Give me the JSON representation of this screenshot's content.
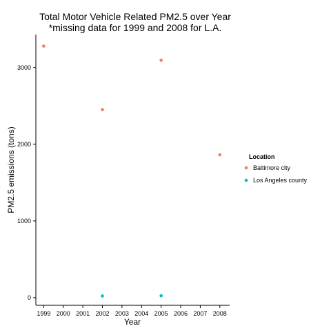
{
  "chart_data": {
    "type": "scatter",
    "title": "Total Motor Vehicle Related PM2.5 over Year",
    "subtitle": "*missing data for 1999 and 2008 for L.A.",
    "xlabel": "Year",
    "ylabel": "PM2.5 emissions (tons)",
    "x_ticks": [
      1999,
      2000,
      2001,
      2002,
      2003,
      2004,
      2005,
      2006,
      2007,
      2008
    ],
    "y_ticks": [
      0,
      1000,
      2000,
      3000
    ],
    "xlim": [
      1998.6,
      2008.5
    ],
    "ylim": [
      -100,
      3430
    ],
    "grid": false,
    "legend": {
      "title": "Location",
      "position": "right"
    },
    "series": [
      {
        "name": "Baltimore city",
        "color": "#F8766D",
        "points": [
          {
            "x": 1999,
            "y": 3280
          },
          {
            "x": 2002,
            "y": 2450
          },
          {
            "x": 2005,
            "y": 3095
          },
          {
            "x": 2008,
            "y": 1862
          }
        ]
      },
      {
        "name": "Los Angeles county",
        "color": "#00BFC4",
        "points": [
          {
            "x": 2002,
            "y": 22
          },
          {
            "x": 2005,
            "y": 25
          }
        ]
      }
    ]
  }
}
